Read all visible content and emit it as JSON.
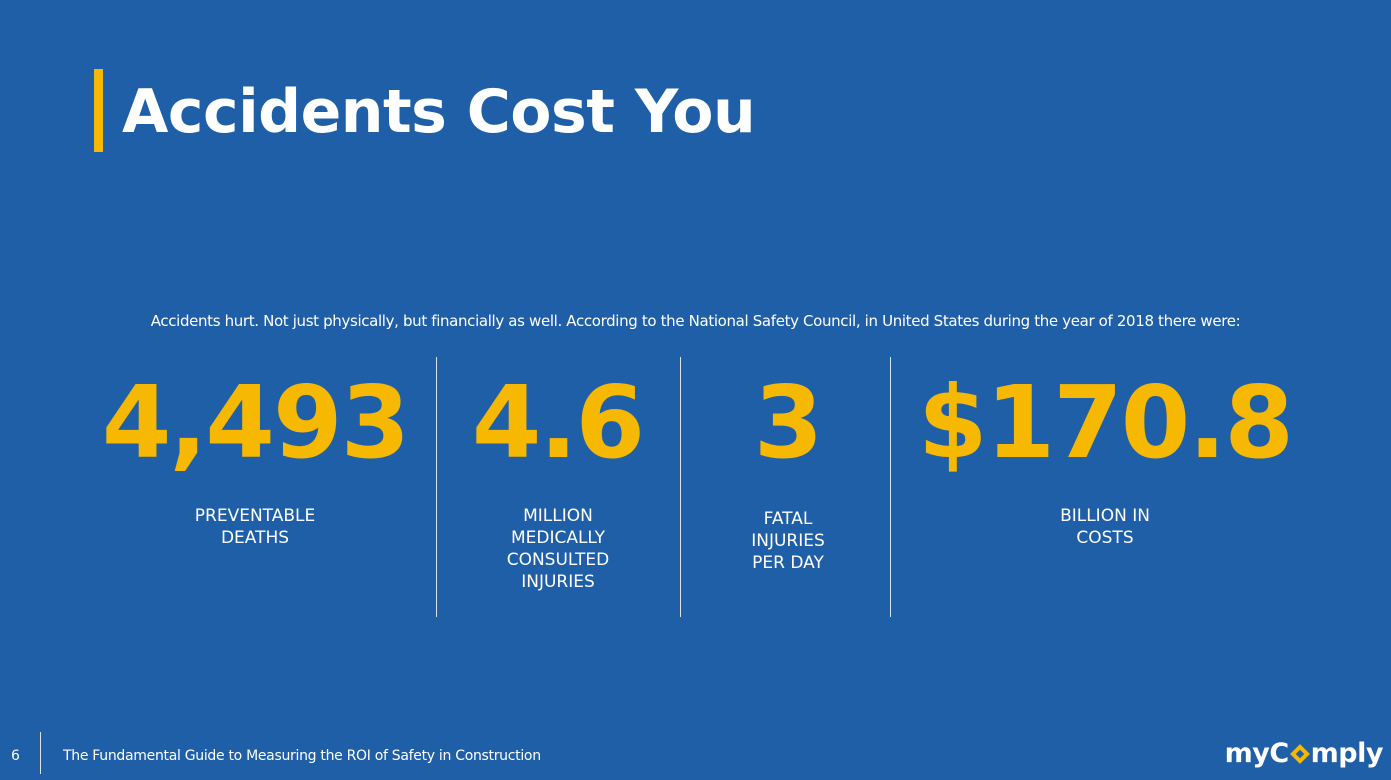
{
  "title": "Accidents Cost You",
  "intro": "Accidents hurt. Not just physically, but financially as well. According to the National Safety Council, in United States during the year of 2018 there were:",
  "stats": [
    {
      "value": "4,493",
      "label": "PREVENTABLE\nDEATHS"
    },
    {
      "value": "4.6",
      "label": "MILLION\nMEDICALLY\nCONSULTED\nINJURIES"
    },
    {
      "value": "3",
      "label": "FATAL\nINJURIES\nPER DAY"
    },
    {
      "value": "$170.8",
      "label": "BILLION IN\nCOSTS"
    }
  ],
  "footer": {
    "page_number": "6",
    "document_title": "The Fundamental Guide to Measuring the ROI of Safety in Construction"
  },
  "logo": {
    "text_before": "myC",
    "text_after": "mply",
    "mark_icon": "diamond-o-icon"
  },
  "colors": {
    "background": "#1f5fa8",
    "accent": "#f6b800",
    "text": "#ffffff"
  }
}
